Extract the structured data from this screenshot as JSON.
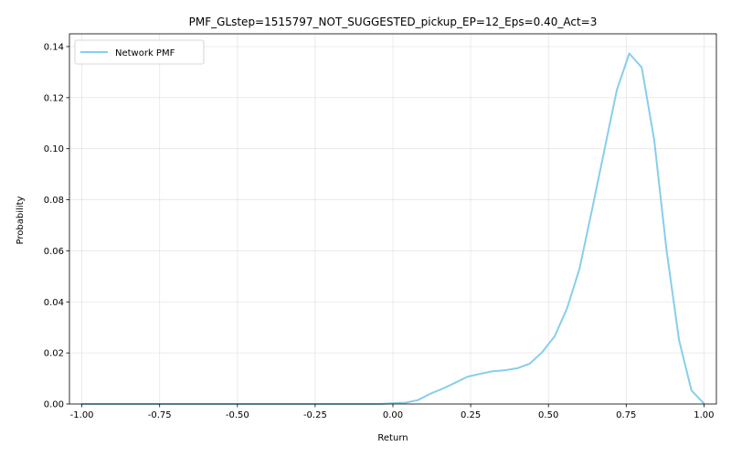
{
  "chart_data": {
    "type": "line",
    "title": "PMF_GLstep=1515797_NOT_SUGGESTED_pickup_EP=12_Eps=0.40_Act=3",
    "xlabel": "Return",
    "ylabel": "Probability",
    "xlim": [
      -1.04,
      1.04
    ],
    "ylim": [
      0,
      0.145
    ],
    "xticks": [
      -1.0,
      -0.75,
      -0.5,
      -0.25,
      0.0,
      0.25,
      0.5,
      0.75,
      1.0
    ],
    "xtick_labels": [
      "-1.00",
      "-0.75",
      "-0.50",
      "-0.25",
      "0.00",
      "0.25",
      "0.50",
      "0.75",
      "1.00"
    ],
    "yticks": [
      0.0,
      0.02,
      0.04,
      0.06,
      0.08,
      0.1,
      0.12,
      0.14
    ],
    "ytick_labels": [
      "0.00",
      "0.02",
      "0.04",
      "0.06",
      "0.08",
      "0.10",
      "0.12",
      "0.14"
    ],
    "grid": true,
    "legend_position": "top-left",
    "series": [
      {
        "name": "Network PMF",
        "color": "#87CEEB",
        "x": [
          -1.0,
          -0.96,
          -0.92,
          -0.88,
          -0.84,
          -0.8,
          -0.76,
          -0.72,
          -0.68,
          -0.64,
          -0.6,
          -0.56,
          -0.52,
          -0.48,
          -0.44,
          -0.4,
          -0.36,
          -0.32,
          -0.28,
          -0.24,
          -0.2,
          -0.16,
          -0.12,
          -0.08,
          -0.04,
          0.0,
          0.04,
          0.08,
          0.12,
          0.16,
          0.2,
          0.24,
          0.28,
          0.32,
          0.36,
          0.4,
          0.44,
          0.48,
          0.52,
          0.56,
          0.6,
          0.64,
          0.68,
          0.72,
          0.76,
          0.8,
          0.84,
          0.88,
          0.92,
          0.96,
          1.0
        ],
        "y": [
          0,
          0,
          0,
          0,
          0,
          0,
          0,
          0,
          0,
          0,
          0,
          0,
          0,
          0,
          0,
          0,
          0,
          0,
          0,
          0,
          0,
          0,
          0,
          0,
          0,
          0.0003,
          0.0005,
          0.0015,
          0.004,
          0.006,
          0.0083,
          0.0107,
          0.0118,
          0.0128,
          0.0132,
          0.014,
          0.0158,
          0.0203,
          0.0265,
          0.0375,
          0.053,
          0.076,
          0.0995,
          0.123,
          0.1373,
          0.1318,
          0.1035,
          0.06,
          0.025,
          0.0053,
          0.0002
        ]
      }
    ]
  }
}
